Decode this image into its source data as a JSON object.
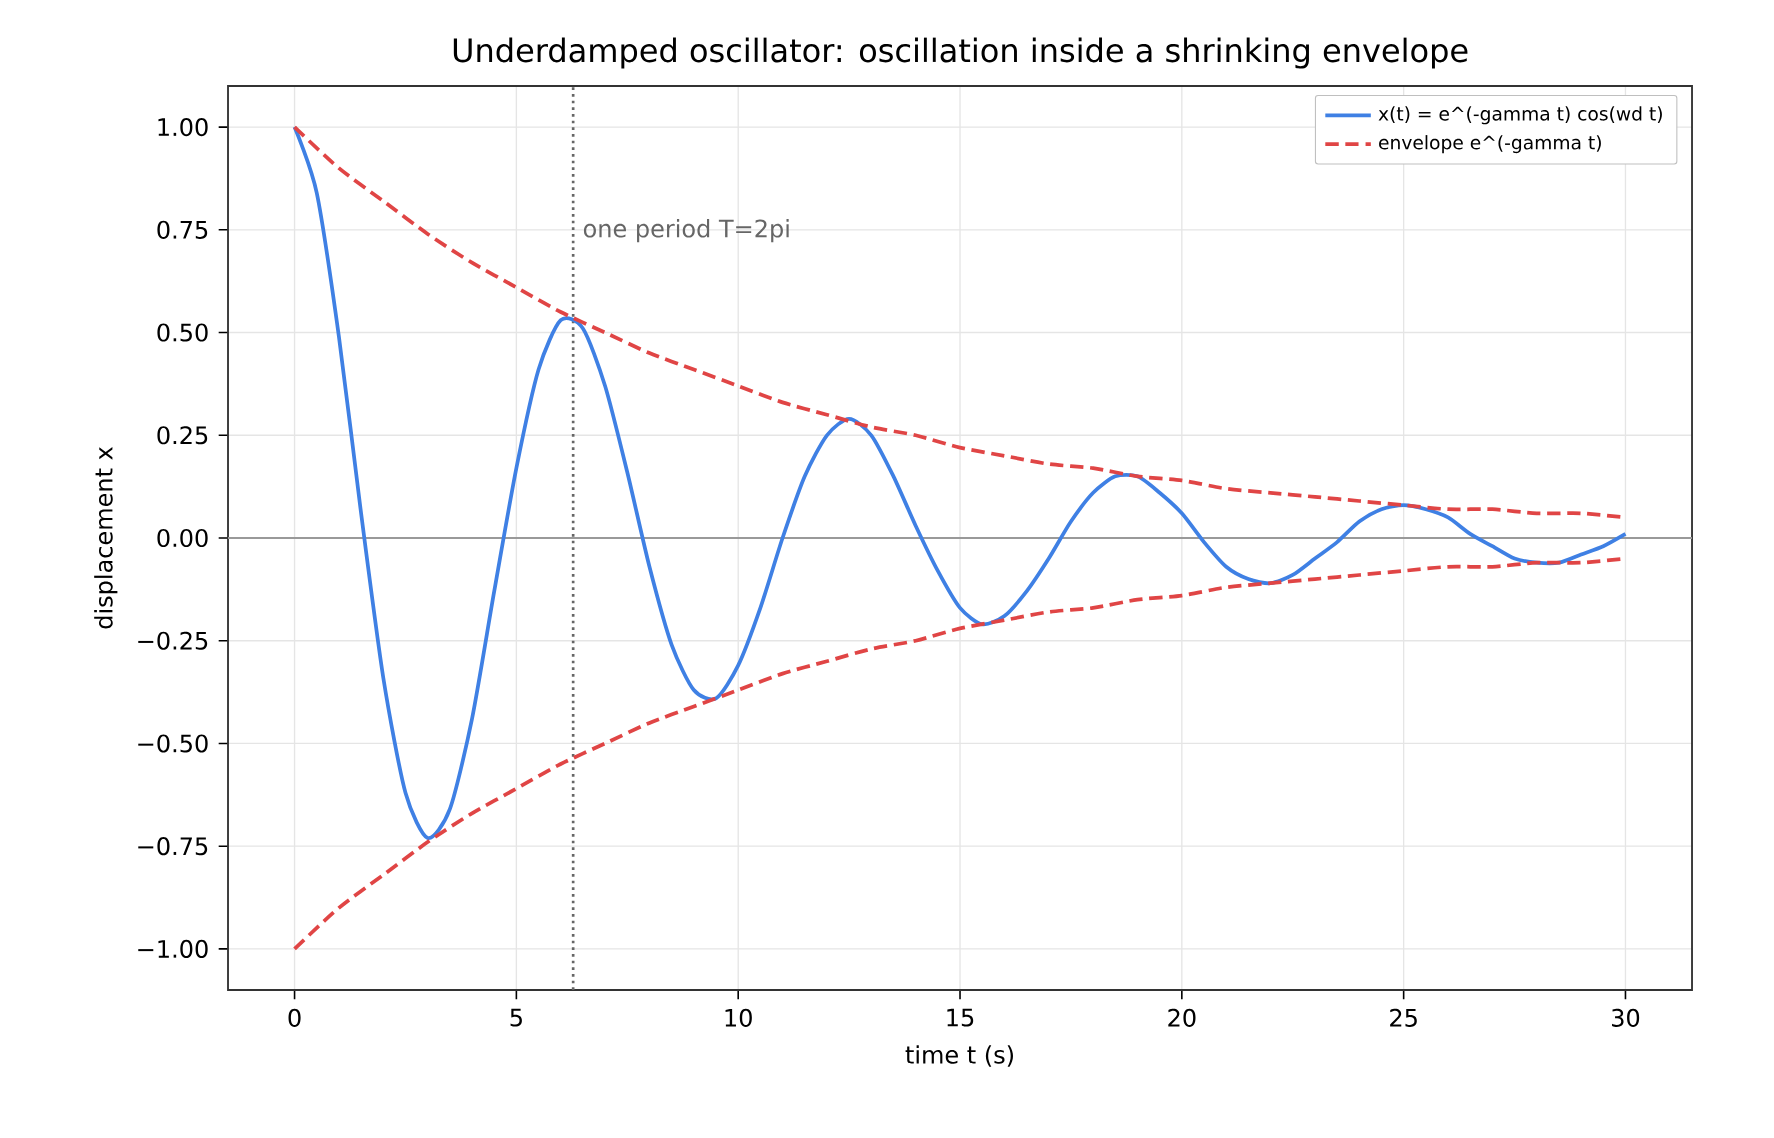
{
  "chart_data": {
    "type": "line",
    "title": "Underdamped oscillator: oscillation inside a shrinking envelope",
    "xlabel": "time t (s)",
    "ylabel": "displacement x",
    "xlim": [
      -1.5,
      31.5
    ],
    "ylim": [
      -1.1,
      1.1
    ],
    "xticks": [
      0,
      5,
      10,
      15,
      20,
      25,
      30
    ],
    "yticks": [
      {
        "value": -1,
        "label": "−1.00"
      },
      {
        "value": -0.75,
        "label": "−0.75"
      },
      {
        "value": -0.5,
        "label": "−0.50"
      },
      {
        "value": -0.25,
        "label": "−0.25"
      },
      {
        "value": 0,
        "label": "0.00"
      },
      {
        "value": 0.25,
        "label": "0.25"
      },
      {
        "value": 0.5,
        "label": "0.50"
      },
      {
        "value": 0.75,
        "label": "0.75"
      },
      {
        "value": 1,
        "label": "1.00"
      }
    ],
    "grid": true,
    "legend": "top right",
    "annotations": [
      "one period T=2pi"
    ],
    "ref_lines": [
      {
        "axis": "x",
        "value": 6.28,
        "color": "#666666",
        "line_style": "dotted"
      },
      {
        "axis": "y",
        "value": 0,
        "color": "#999999",
        "line_style": "solid"
      }
    ],
    "series": [
      {
        "name": "x(t) = e^(-gamma t) cos(wd t)",
        "color": "#3f80e4",
        "line_style": "solid",
        "x": [
          0,
          0.5,
          1,
          1.5,
          2,
          2.5,
          3,
          3.5,
          4,
          4.5,
          5,
          5.5,
          6,
          6.5,
          7,
          7.5,
          8,
          8.5,
          9,
          9.5,
          10,
          10.5,
          11,
          11.5,
          12,
          12.5,
          13,
          13.5,
          14,
          14.5,
          15,
          15.5,
          16,
          16.5,
          17,
          17.5,
          18,
          18.5,
          19,
          19.5,
          20,
          20.5,
          21,
          21.5,
          22,
          22.5,
          23,
          23.5,
          24,
          24.5,
          25,
          25.5,
          26,
          26.5,
          27,
          27.5,
          28,
          28.5,
          29,
          29.5,
          30
        ],
        "values": [
          1.0,
          0.84,
          0.49,
          0.06,
          -0.34,
          -0.62,
          -0.73,
          -0.66,
          -0.44,
          -0.13,
          0.17,
          0.41,
          0.53,
          0.51,
          0.37,
          0.16,
          -0.07,
          -0.26,
          -0.37,
          -0.39,
          -0.31,
          -0.17,
          0.0,
          0.15,
          0.25,
          0.29,
          0.25,
          0.15,
          0.03,
          -0.08,
          -0.17,
          -0.21,
          -0.19,
          -0.13,
          -0.05,
          0.04,
          0.11,
          0.15,
          0.15,
          0.11,
          0.06,
          -0.01,
          -0.07,
          -0.1,
          -0.11,
          -0.09,
          -0.05,
          -0.01,
          0.04,
          0.07,
          0.08,
          0.07,
          0.05,
          0.01,
          -0.02,
          -0.05,
          -0.06,
          -0.06,
          -0.04,
          -0.02,
          0.01
        ]
      },
      {
        "name": "envelope e^(-gamma t)",
        "color": "#e04545",
        "line_style": "dashed",
        "x": [
          0,
          1,
          2,
          3,
          4,
          5,
          6,
          7,
          8,
          9,
          10,
          11,
          12,
          13,
          14,
          15,
          16,
          17,
          18,
          19,
          20,
          21,
          22,
          23,
          24,
          25,
          26,
          27,
          28,
          29,
          30
        ],
        "values": [
          1.0,
          0.9,
          0.82,
          0.74,
          0.67,
          0.61,
          0.55,
          0.5,
          0.45,
          0.41,
          0.37,
          0.33,
          0.3,
          0.27,
          0.25,
          0.22,
          0.2,
          0.18,
          0.17,
          0.15,
          0.14,
          0.12,
          0.11,
          0.1,
          0.09,
          0.08,
          0.07,
          0.07,
          0.06,
          0.06,
          0.05
        ]
      },
      {
        "color": "#e04545",
        "line_style": "dashed",
        "x": [
          0,
          1,
          2,
          3,
          4,
          5,
          6,
          7,
          8,
          9,
          10,
          11,
          12,
          13,
          14,
          15,
          16,
          17,
          18,
          19,
          20,
          21,
          22,
          23,
          24,
          25,
          26,
          27,
          28,
          29,
          30
        ],
        "values": [
          -1.0,
          -0.9,
          -0.82,
          -0.74,
          -0.67,
          -0.61,
          -0.55,
          -0.5,
          -0.45,
          -0.41,
          -0.37,
          -0.33,
          -0.3,
          -0.27,
          -0.25,
          -0.22,
          -0.2,
          -0.18,
          -0.17,
          -0.15,
          -0.14,
          -0.12,
          -0.11,
          -0.1,
          -0.09,
          -0.08,
          -0.07,
          -0.07,
          -0.06,
          -0.06,
          -0.05
        ]
      }
    ]
  }
}
